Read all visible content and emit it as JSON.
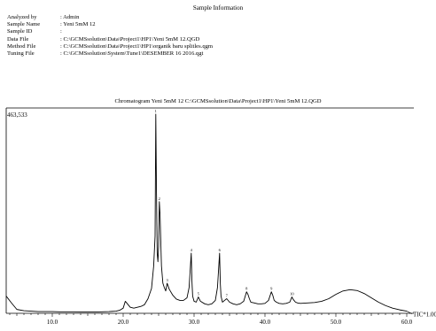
{
  "header": {
    "title": "Sample Information"
  },
  "sample_info": [
    {
      "label": "Analyzed by",
      "value": ": Admin"
    },
    {
      "label": "Sample Name",
      "value": ": Yeni 5mM 12"
    },
    {
      "label": "Sample ID",
      "value": ":"
    },
    {
      "label": "Data File",
      "value": ": C:\\GCMSsolution\\Data\\Project1\\HP1\\Yeni 5mM 12.QGD"
    },
    {
      "label": "Method File",
      "value": ": C:\\GCMSsolution\\Data\\Project1\\HP1\\organik baru splitles.qgm"
    },
    {
      "label": "Tuning File",
      "value": ": C:\\GCMSsolution\\System\\Tune1\\DESEMBER 16  2016.qgt"
    }
  ],
  "chart_data": {
    "type": "line",
    "title": "Chromatogram Yeni 5mM 12 C:\\GCMSsolution\\Data\\Project1\\HP1\\Yeni 5mM 12.QGD",
    "ymax_label": "463,533",
    "ylim": [
      0,
      463533
    ],
    "xlim": [
      3.5,
      60.0
    ],
    "xticks": [
      10.0,
      20.0,
      30.0,
      40.0,
      50.0,
      60.0
    ],
    "xtick_labels": [
      "10.0",
      "20.0",
      "30.0",
      "40.0",
      "50.0",
      "60.0"
    ],
    "series": [
      {
        "name": "TIC*1.00",
        "x": [
          3.5,
          4.2,
          5.0,
          6.0,
          7.0,
          8.0,
          9.0,
          10.0,
          11.0,
          12.0,
          13.0,
          14.0,
          15.0,
          16.0,
          17.0,
          18.0,
          19.0,
          19.5,
          20.0,
          20.3,
          20.6,
          21.0,
          21.5,
          22.0,
          22.5,
          23.0,
          23.5,
          24.0,
          24.3,
          24.5,
          24.6,
          24.7,
          24.8,
          24.9,
          25.0,
          25.1,
          25.2,
          25.4,
          25.6,
          25.8,
          26.0,
          26.2,
          26.5,
          27.0,
          27.5,
          28.0,
          28.5,
          29.0,
          29.3,
          29.6,
          29.7,
          29.8,
          30.0,
          30.3,
          30.6,
          30.9,
          31.5,
          32.0,
          32.5,
          33.0,
          33.3,
          33.6,
          33.7,
          33.8,
          34.0,
          34.3,
          34.6,
          35.0,
          35.5,
          36.0,
          36.5,
          37.0,
          37.4,
          37.6,
          37.8,
          38.0,
          38.5,
          39.0,
          39.5,
          40.0,
          40.5,
          40.9,
          41.1,
          41.3,
          41.6,
          42.0,
          42.5,
          43.0,
          43.5,
          43.8,
          44.0,
          44.3,
          44.6,
          45.0,
          46.0,
          47.0,
          48.0,
          49.0,
          50.0,
          51.0,
          52.0,
          53.0,
          54.0,
          55.0,
          56.0,
          57.0,
          58.0,
          59.0,
          60.0
        ],
        "y": [
          40000,
          25000,
          9000,
          6000,
          5000,
          4000,
          4000,
          4000,
          3500,
          3500,
          3500,
          3200,
          3200,
          3000,
          3500,
          4000,
          5000,
          7000,
          12000,
          28000,
          22000,
          14000,
          12000,
          14000,
          16000,
          20000,
          34000,
          58000,
          110000,
          180000,
          463533,
          280000,
          140000,
          120000,
          155000,
          260000,
          230000,
          110000,
          70000,
          60000,
          52000,
          70000,
          56000,
          42000,
          33000,
          30000,
          30000,
          36000,
          60000,
          140000,
          75000,
          40000,
          28000,
          26000,
          38000,
          28000,
          22000,
          20000,
          22000,
          30000,
          60000,
          140000,
          70000,
          40000,
          26000,
          30000,
          34000,
          26000,
          22000,
          20000,
          22000,
          28000,
          50000,
          44000,
          34000,
          26000,
          24000,
          22000,
          22000,
          23000,
          30000,
          50000,
          42000,
          30000,
          26000,
          23000,
          22000,
          23000,
          26000,
          38000,
          32000,
          26000,
          24000,
          23000,
          24000,
          25000,
          28000,
          34000,
          44000,
          52000,
          55000,
          53000,
          46000,
          36000,
          26000,
          18000,
          12000,
          8000,
          5000
        ]
      }
    ],
    "peak_labels": [
      {
        "x": 24.6,
        "y": 463533,
        "label": "1"
      },
      {
        "x": 25.1,
        "y": 260000,
        "label": "2"
      },
      {
        "x": 26.2,
        "y": 70000,
        "label": "3"
      },
      {
        "x": 29.6,
        "y": 140000,
        "label": "4"
      },
      {
        "x": 30.6,
        "y": 38000,
        "label": "5"
      },
      {
        "x": 33.6,
        "y": 140000,
        "label": "6"
      },
      {
        "x": 34.6,
        "y": 34000,
        "label": "7"
      },
      {
        "x": 37.4,
        "y": 50000,
        "label": "8"
      },
      {
        "x": 40.9,
        "y": 50000,
        "label": "9"
      },
      {
        "x": 43.8,
        "y": 38000,
        "label": "10"
      }
    ],
    "series_label": "TIC*1.00",
    "grid": false
  }
}
